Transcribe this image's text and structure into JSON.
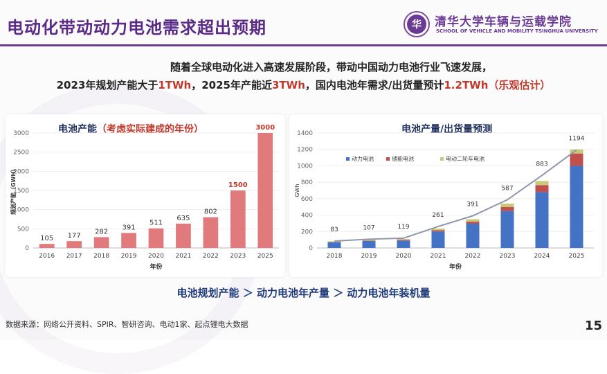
{
  "title": "电动化带动动力电池需求超出预期",
  "school": {
    "logo_text": "华",
    "name_cn": "清华大学车辆与运载学院",
    "name_en": "SCHOOL OF VEHICLE AND MOBILITY TSINGHUA UNIVERSITY"
  },
  "intro": {
    "line1": "随着全球电动化进入高速发展阶段，带动中国动力电池行业飞速发展，",
    "line2_a": "2023年规划产能大于",
    "line2_b": "1TWh",
    "line2_c": "，2025年产能近",
    "line2_d": "3TWh",
    "line2_e": "，国内电池年需求/出货量预计",
    "line2_f": "1.2TWh",
    "line2_g": "（乐观估计）"
  },
  "chart_left": {
    "title_a": "电池产能",
    "title_b": "（考虑实际建成的年份）",
    "colors": {
      "normal": "#e07a7c",
      "highlight": "#c0392b"
    }
  },
  "chart_right": {
    "title": "电池产量/出货量预测",
    "colors": {
      "power": "#4472c4",
      "storage": "#c0504d",
      "two_wheeler": "#c9c97a",
      "line": "#8e96aa"
    }
  },
  "chart_data": [
    {
      "type": "bar",
      "title": "电池产能（考虑实际建成的年份）",
      "categories": [
        "2016",
        "2017",
        "2018",
        "2019",
        "2020",
        "2021",
        "2022",
        "2023",
        "2025"
      ],
      "values": [
        105,
        177,
        282,
        391,
        511,
        635,
        802,
        1500,
        3000
      ],
      "highlight_labels": [
        "2023",
        "2025"
      ],
      "xlabel": "年份",
      "ylabel": "规划产能（GWH）",
      "ylim": [
        0,
        3000
      ],
      "yticks": [
        0,
        500,
        1000,
        1500,
        2000,
        2500,
        3000
      ]
    },
    {
      "type": "bar",
      "title": "电池产量/出货量预测",
      "categories": [
        "2018",
        "2019",
        "2020",
        "2021",
        "2022",
        "2023",
        "2024",
        "2025"
      ],
      "series": [
        {
          "name": "动力电池",
          "values": [
            70,
            85,
            90,
            200,
            295,
            450,
            680,
            1000
          ]
        },
        {
          "name": "储能电池",
          "values": [
            3,
            5,
            7,
            15,
            25,
            50,
            85,
            150
          ]
        },
        {
          "name": "电动二轮车电池",
          "values": [
            8,
            10,
            12,
            20,
            30,
            40,
            50,
            50
          ]
        }
      ],
      "line": {
        "values": [
          83,
          107,
          119,
          261,
          391,
          587,
          883,
          1194
        ]
      },
      "xlabel": "年份",
      "ylabel": "GWh",
      "ylim": [
        0,
        1400
      ],
      "yticks": [
        0,
        200,
        400,
        600,
        800,
        1000,
        1200,
        1400
      ],
      "legend": "top-left"
    }
  ],
  "bottom_text": "电池规划产能 ＞ 动力电池年产量 ＞ 动力电池年装机量",
  "source": "数据来源：网络公开资料、SPIR、智研咨询、电动1家、起点锂电大数据",
  "page_number": "15"
}
